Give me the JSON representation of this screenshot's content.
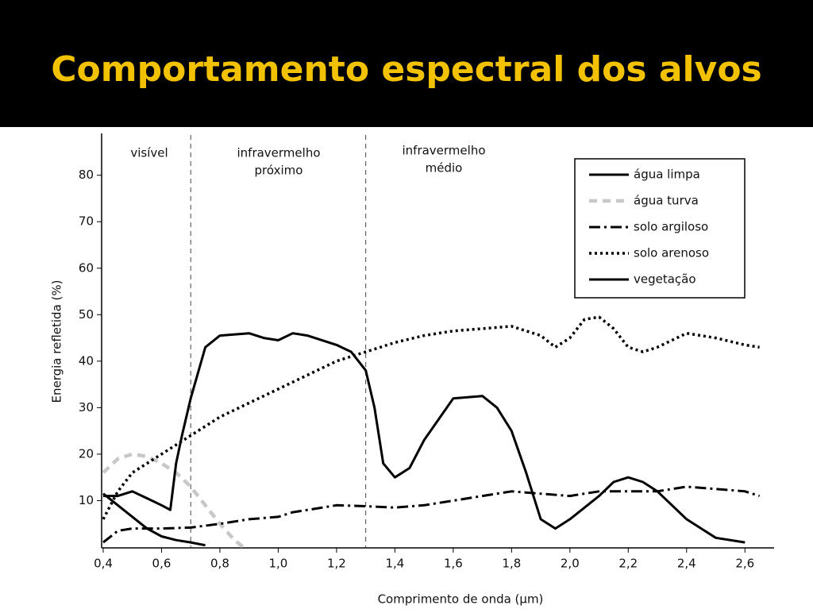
{
  "chart_data": {
    "type": "line",
    "title": "Comportamento espectral dos alvos",
    "xlabel": "Comprimento de onda (µm)",
    "ylabel": "Energia refletida (%)",
    "xlim": [
      0.4,
      2.7
    ],
    "ylim": [
      0,
      89
    ],
    "xticks": [
      {
        "value": 0.4,
        "label": "0,4"
      },
      {
        "value": 0.6,
        "label": "0,6"
      },
      {
        "value": 0.8,
        "label": "0,8"
      },
      {
        "value": 1.0,
        "label": "1,0"
      },
      {
        "value": 1.2,
        "label": "1,2"
      },
      {
        "value": 1.4,
        "label": "1,4"
      },
      {
        "value": 1.6,
        "label": "1,6"
      },
      {
        "value": 1.8,
        "label": "1,8"
      },
      {
        "value": 2.0,
        "label": "2,0"
      },
      {
        "value": 2.2,
        "label": "2,2"
      },
      {
        "value": 2.4,
        "label": "2,4"
      },
      {
        "value": 2.6,
        "label": "2,6"
      }
    ],
    "yticks": [
      10,
      20,
      30,
      40,
      50,
      60,
      70,
      80
    ],
    "dividers": [
      0.7,
      1.3
    ],
    "regions": [
      [
        "visível"
      ],
      [
        "infravermelho",
        "próximo"
      ],
      [
        "infravermelho",
        "médio"
      ]
    ],
    "legend": "upper right",
    "series": [
      {
        "name": "água limpa",
        "color": "#000000",
        "style": "solid",
        "x": [
          0.4,
          0.45,
          0.5,
          0.55,
          0.6,
          0.65,
          0.7,
          0.75
        ],
        "values": [
          11.5,
          9,
          6.5,
          4,
          2.3,
          1.5,
          1,
          0.4
        ]
      },
      {
        "name": "água turva",
        "color": "#c8c8c8",
        "style": "dashed",
        "x": [
          0.4,
          0.45,
          0.5,
          0.55,
          0.6,
          0.65,
          0.7,
          0.75,
          0.8,
          0.85,
          0.88
        ],
        "values": [
          16,
          19,
          20,
          19.5,
          18,
          16,
          13,
          9,
          5,
          1.5,
          0
        ]
      },
      {
        "name": "solo argiloso",
        "color": "#000000",
        "style": "dashdot",
        "x": [
          0.4,
          0.45,
          0.5,
          0.6,
          0.7,
          0.8,
          0.9,
          1.0,
          1.05,
          1.1,
          1.2,
          1.3,
          1.4,
          1.5,
          1.6,
          1.7,
          1.8,
          1.9,
          2.0,
          2.1,
          2.2,
          2.3,
          2.4,
          2.5,
          2.6,
          2.65
        ],
        "values": [
          1,
          3.5,
          4,
          4,
          4.2,
          5,
          6,
          6.5,
          7.5,
          8,
          9,
          8.8,
          8.5,
          9,
          10,
          11,
          12,
          11.5,
          11,
          12,
          12,
          12,
          13,
          12.5,
          12,
          11
        ]
      },
      {
        "name": "solo arenoso",
        "color": "#000000",
        "style": "dotted",
        "x": [
          0.4,
          0.45,
          0.5,
          0.6,
          0.7,
          0.8,
          0.9,
          1.0,
          1.1,
          1.2,
          1.3,
          1.4,
          1.5,
          1.6,
          1.7,
          1.8,
          1.9,
          1.95,
          2.0,
          2.05,
          2.1,
          2.15,
          2.2,
          2.25,
          2.3,
          2.4,
          2.5,
          2.6,
          2.65
        ],
        "values": [
          6,
          12,
          16,
          20,
          24,
          28,
          31,
          34,
          37,
          40,
          42,
          44,
          45.5,
          46.5,
          47,
          47.5,
          45.5,
          43,
          45,
          49,
          49.5,
          47,
          43,
          42,
          43,
          46,
          45,
          43.5,
          43
        ]
      },
      {
        "name": "vegetação",
        "color": "#000000",
        "style": "solid",
        "x": [
          0.4,
          0.45,
          0.5,
          0.55,
          0.6,
          0.63,
          0.65,
          0.67,
          0.7,
          0.75,
          0.8,
          0.9,
          0.95,
          1.0,
          1.05,
          1.1,
          1.2,
          1.25,
          1.3,
          1.33,
          1.36,
          1.4,
          1.45,
          1.5,
          1.6,
          1.7,
          1.75,
          1.8,
          1.85,
          1.9,
          1.95,
          2.0,
          2.1,
          2.15,
          2.2,
          2.25,
          2.3,
          2.4,
          2.5,
          2.6
        ],
        "values": [
          11,
          11,
          12,
          10.5,
          9,
          8,
          18,
          24,
          32,
          43,
          45.5,
          46,
          45,
          44.5,
          46,
          45.5,
          43.5,
          42,
          38,
          30,
          18,
          15,
          17,
          23,
          32,
          32.5,
          30,
          25,
          16,
          6,
          4,
          6,
          11,
          14,
          15,
          14,
          12,
          6,
          2,
          1
        ]
      }
    ]
  }
}
